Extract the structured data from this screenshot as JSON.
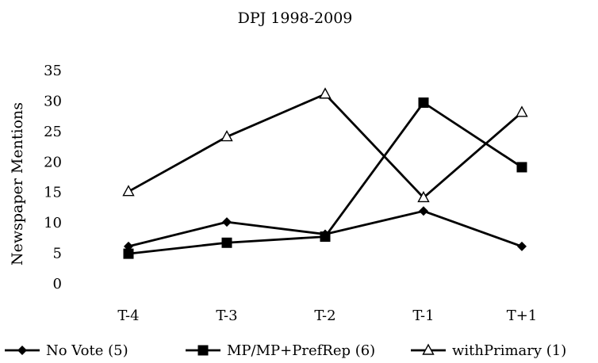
{
  "chart_data": {
    "type": "line",
    "title": "DPJ 1998-2009",
    "xlabel": "",
    "ylabel": "Newspaper Mentions",
    "categories": [
      "T-4",
      "T-3",
      "T-2",
      "T-1",
      "T+1"
    ],
    "ylim": [
      0,
      35
    ],
    "yticks": [
      "0",
      "5",
      "10",
      "15",
      "20",
      "25",
      "30",
      "35"
    ],
    "grid": false,
    "legend_position": "bottom",
    "series": [
      {
        "name": "No Vote (5)",
        "marker": "diamond",
        "color": "#000000",
        "values": [
          6,
          10,
          8,
          11.8,
          6
        ]
      },
      {
        "name": "MP/MP+PrefRep (6)",
        "marker": "square",
        "color": "#000000",
        "values": [
          4.8,
          6.6,
          7.6,
          29.6,
          19
        ]
      },
      {
        "name": "withPrimary (1)",
        "marker": "open-triangle",
        "color": "#000000",
        "values": [
          15,
          24,
          31,
          14,
          28
        ]
      }
    ]
  }
}
